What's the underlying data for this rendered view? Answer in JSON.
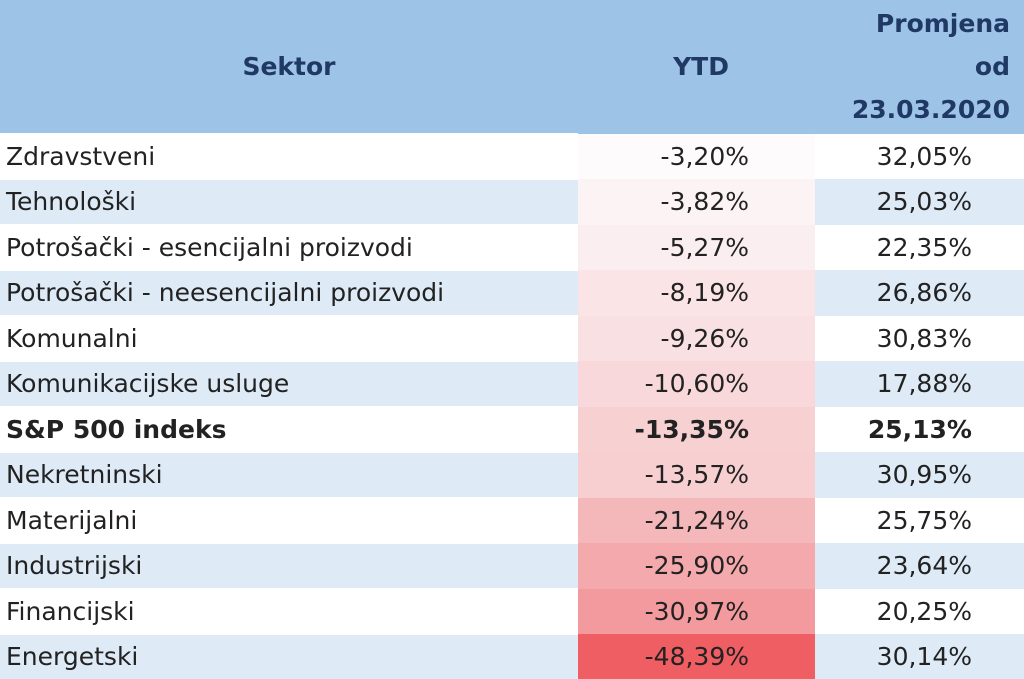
{
  "table": {
    "header": [
      "Sektor",
      "YTD",
      "Promjena od 23.03.2020"
    ],
    "rows": [
      [
        "Zdravstveni",
        "-3,20%",
        "32,05%"
      ],
      [
        "Tehnološki",
        "-3,82%",
        "25,03%"
      ],
      [
        "Potrošački - esencijalni proizvodi",
        "-5,27%",
        "22,35%"
      ],
      [
        "Potrošački - neesencijalni proizvodi",
        "-8,19%",
        "26,86%"
      ],
      [
        "Komunalni",
        "-9,26%",
        "30,83%"
      ],
      [
        "Komunikacijske usluge",
        "-10,60%",
        "17,88%"
      ],
      [
        "S&P 500 indeks",
        "-13,35%",
        "25,13%"
      ],
      [
        "Nekretninski",
        "-13,57%",
        "30,95%"
      ],
      [
        "Materijalni",
        "-21,24%",
        "25,75%"
      ],
      [
        "Industrijski",
        "-25,90%",
        "23,64%"
      ],
      [
        "Financijski",
        "-30,97%",
        "20,25%"
      ],
      [
        "Energetski",
        "-48,39%",
        "30,14%"
      ]
    ]
  }
}
